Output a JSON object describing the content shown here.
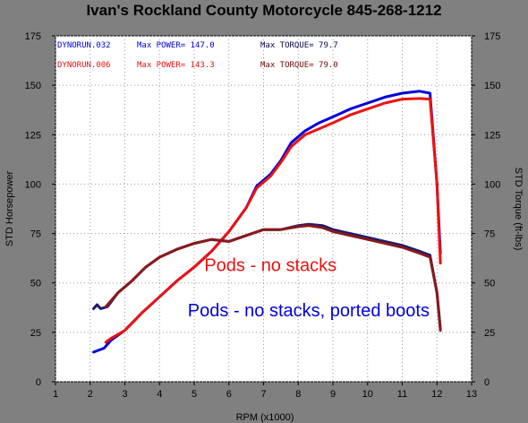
{
  "chart_data": {
    "type": "line",
    "title": "Ivan's Rockland County Motorcycle  845-268-1212",
    "xlabel": "RPM (x1000)",
    "ylabel_left": "STD Horsepower",
    "ylabel_right": "STD Torque (ft-lbs)",
    "xlim": [
      1,
      13
    ],
    "ylim": [
      0,
      175
    ],
    "x_ticks": [
      "1",
      "2",
      "3",
      "4",
      "5",
      "6",
      "7",
      "8",
      "9",
      "10",
      "11",
      "12",
      "13"
    ],
    "y_ticks": [
      "0",
      "25",
      "50",
      "75",
      "100",
      "125",
      "150",
      "175"
    ],
    "grid": true,
    "background": "#ffffff",
    "legend": [
      {
        "label": "DYNORUN.032",
        "power": "Max POWER= 147.0",
        "torque": "Max TORQUE= 79.7",
        "color": "#0000dd"
      },
      {
        "label": "DYNORUN.006",
        "power": "Max POWER= 143.3",
        "torque": "Max TORQUE= 79.0",
        "color": "#ee1111"
      }
    ],
    "annotations": [
      {
        "text": "Pods - no stacks",
        "color": "#ee1111",
        "rpm": 7.2,
        "value": 56
      },
      {
        "text": "Pods - no stacks, ported boots",
        "color": "#0000dd",
        "rpm": 8.3,
        "value": 33
      }
    ],
    "series": [
      {
        "name": "DYNORUN.032",
        "measure": "horsepower",
        "color": "#0000dd",
        "points": [
          [
            2.1,
            15
          ],
          [
            2.4,
            17
          ],
          [
            2.6,
            21
          ],
          [
            3,
            26
          ],
          [
            3.5,
            35
          ],
          [
            4,
            43
          ],
          [
            4.5,
            51
          ],
          [
            5,
            58
          ],
          [
            5.5,
            66
          ],
          [
            6,
            76
          ],
          [
            6.5,
            88
          ],
          [
            6.8,
            99
          ],
          [
            7.2,
            105
          ],
          [
            7.5,
            112
          ],
          [
            7.8,
            121
          ],
          [
            8.2,
            127
          ],
          [
            8.6,
            131
          ],
          [
            9,
            134
          ],
          [
            9.5,
            138
          ],
          [
            10,
            141
          ],
          [
            10.5,
            144
          ],
          [
            11,
            146
          ],
          [
            11.5,
            147
          ],
          [
            11.8,
            146
          ],
          [
            12.0,
            100
          ],
          [
            12.1,
            65
          ]
        ]
      },
      {
        "name": "DYNORUN.006",
        "measure": "horsepower",
        "color": "#ee1111",
        "points": [
          [
            2.45,
            20
          ],
          [
            2.6,
            22
          ],
          [
            3,
            26
          ],
          [
            3.5,
            35
          ],
          [
            4,
            43
          ],
          [
            4.5,
            51
          ],
          [
            5,
            58
          ],
          [
            5.5,
            66
          ],
          [
            6,
            76
          ],
          [
            6.5,
            88
          ],
          [
            6.8,
            98
          ],
          [
            7.2,
            104
          ],
          [
            7.5,
            111
          ],
          [
            7.8,
            119
          ],
          [
            8.2,
            125
          ],
          [
            8.6,
            128
          ],
          [
            9,
            131
          ],
          [
            9.5,
            135
          ],
          [
            10,
            138
          ],
          [
            10.5,
            141
          ],
          [
            11,
            143
          ],
          [
            11.5,
            143.3
          ],
          [
            11.8,
            143
          ],
          [
            12.0,
            100
          ],
          [
            12.1,
            60
          ]
        ]
      },
      {
        "name": "DYNORUN.032",
        "measure": "torque",
        "color": "#1a1a70",
        "points": [
          [
            2.1,
            37
          ],
          [
            2.2,
            39
          ],
          [
            2.3,
            37
          ],
          [
            2.5,
            38
          ],
          [
            2.8,
            45
          ],
          [
            3.2,
            51
          ],
          [
            3.6,
            58
          ],
          [
            4,
            63
          ],
          [
            4.5,
            67
          ],
          [
            5,
            70
          ],
          [
            5.5,
            72
          ],
          [
            6,
            71
          ],
          [
            6.5,
            74
          ],
          [
            7,
            77
          ],
          [
            7.5,
            77
          ],
          [
            8,
            79
          ],
          [
            8.3,
            79.7
          ],
          [
            8.7,
            79
          ],
          [
            9,
            77
          ],
          [
            9.5,
            75
          ],
          [
            10,
            73
          ],
          [
            10.5,
            71
          ],
          [
            11,
            69
          ],
          [
            11.5,
            66
          ],
          [
            11.8,
            64
          ],
          [
            12.0,
            45
          ],
          [
            12.1,
            27
          ]
        ]
      },
      {
        "name": "DYNORUN.006",
        "measure": "torque",
        "color": "#8a1a1a",
        "points": [
          [
            2.45,
            38
          ],
          [
            2.6,
            41
          ],
          [
            2.8,
            45
          ],
          [
            3.2,
            51
          ],
          [
            3.6,
            58
          ],
          [
            4,
            63
          ],
          [
            4.5,
            67
          ],
          [
            5,
            70
          ],
          [
            5.5,
            72
          ],
          [
            6,
            71
          ],
          [
            6.5,
            74
          ],
          [
            7,
            77
          ],
          [
            7.5,
            77
          ],
          [
            8,
            78.5
          ],
          [
            8.3,
            79
          ],
          [
            8.7,
            78
          ],
          [
            9,
            76
          ],
          [
            9.5,
            74
          ],
          [
            10,
            72
          ],
          [
            10.5,
            70
          ],
          [
            11,
            68
          ],
          [
            11.5,
            65
          ],
          [
            11.8,
            63
          ],
          [
            12.0,
            45
          ],
          [
            12.1,
            26
          ]
        ]
      }
    ]
  }
}
